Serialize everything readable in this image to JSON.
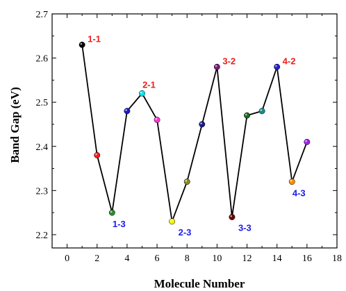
{
  "chart_data": {
    "type": "line",
    "xlabel": "Molecule Number",
    "ylabel": "Band Gap (eV)",
    "xlim": [
      -1,
      18
    ],
    "ylim": [
      2.17,
      2.7
    ],
    "x_ticks": [
      0,
      2,
      4,
      6,
      8,
      10,
      12,
      14,
      16,
      18
    ],
    "y_ticks": [
      2.2,
      2.3,
      2.4,
      2.5,
      2.6,
      2.7
    ],
    "grid": false,
    "legend": "none",
    "series": [
      {
        "line_color": "#000000",
        "x": [
          1,
          2,
          3,
          4,
          5,
          6,
          7,
          8,
          9,
          10,
          11,
          12,
          13,
          14,
          15,
          16
        ],
        "y": [
          2.63,
          2.38,
          2.25,
          2.48,
          2.52,
          2.46,
          2.23,
          2.32,
          2.45,
          2.58,
          2.24,
          2.47,
          2.48,
          2.58,
          2.32,
          2.41
        ],
        "marker_colors": [
          "#000000",
          "#ff1a1a",
          "#2e8b2e",
          "#1a1acc",
          "#00e5ee",
          "#ff33cc",
          "#f5f500",
          "#8a8a1a",
          "#1a1a8a",
          "#7a1a7a",
          "#6b0000",
          "#1a6b1a",
          "#1a8a8a",
          "#2020cc",
          "#ff8c00",
          "#a020f0"
        ]
      }
    ],
    "annotations": [
      {
        "text": "1-1",
        "x": 1,
        "y": 2.63,
        "color": "#ee1c1c",
        "pos": "right"
      },
      {
        "text": "1-3",
        "x": 3,
        "y": 2.25,
        "color": "#1a1aee",
        "pos": "below"
      },
      {
        "text": "2-1",
        "x": 5,
        "y": 2.52,
        "color": "#ee1c1c",
        "pos": "above"
      },
      {
        "text": "2-3",
        "x": 7,
        "y": 2.23,
        "color": "#1a1aee",
        "pos": "below-right"
      },
      {
        "text": "3-2",
        "x": 10,
        "y": 2.58,
        "color": "#ee1c1c",
        "pos": "right"
      },
      {
        "text": "3-3",
        "x": 11,
        "y": 2.24,
        "color": "#1a1aee",
        "pos": "below-right"
      },
      {
        "text": "4-2",
        "x": 14,
        "y": 2.58,
        "color": "#ee1c1c",
        "pos": "right"
      },
      {
        "text": "4-3",
        "x": 15,
        "y": 2.32,
        "color": "#1a1aee",
        "pos": "below"
      }
    ]
  }
}
